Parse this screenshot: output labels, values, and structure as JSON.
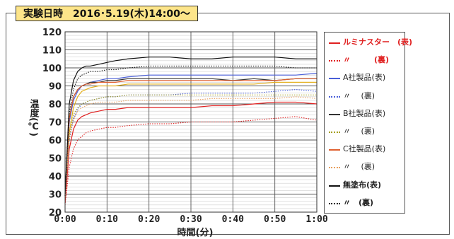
{
  "header": {
    "title": "実験日時　2016･5.19(木)14:00～"
  },
  "chart_data": {
    "type": "line",
    "xlabel": "時間(分)",
    "ylabel": "温度(℃)",
    "x_ticks": [
      "0:00",
      "0:10",
      "0:20",
      "0:30",
      "0:40",
      "0:50",
      "1:00"
    ],
    "ylim": [
      20,
      120
    ],
    "y_ticks": [
      20,
      30,
      40,
      50,
      60,
      70,
      80,
      90,
      100,
      110,
      120
    ],
    "grid": true,
    "legend_position": "right",
    "x": [
      0,
      1,
      2,
      3,
      4,
      5,
      6,
      8,
      10,
      12,
      15,
      20,
      25,
      30,
      35,
      40,
      45,
      50,
      55,
      60
    ],
    "series": [
      {
        "name": "ルミナスター(表)",
        "color": "#e02020",
        "style": "solid",
        "values": [
          25,
          55,
          66,
          71,
          73,
          74,
          75,
          76,
          77,
          77,
          78,
          78,
          78,
          78,
          79,
          79,
          80,
          81,
          81,
          80
        ]
      },
      {
        "name": "〃　(裏)",
        "color": "#e02020",
        "style": "dotted",
        "values": [
          24,
          45,
          55,
          60,
          62,
          64,
          65,
          66,
          67,
          67,
          68,
          69,
          69,
          70,
          70,
          70,
          71,
          72,
          73,
          71
        ]
      },
      {
        "name": "A社製品(表)",
        "color": "#4a5fd8",
        "style": "solid",
        "values": [
          29,
          70,
          82,
          87,
          90,
          91,
          92,
          93,
          94,
          94,
          95,
          96,
          96,
          96,
          96,
          96,
          96,
          96,
          96,
          97
        ]
      },
      {
        "name": "〃　(裏)",
        "color": "#4a5fd8",
        "style": "dotted",
        "values": [
          28,
          60,
          72,
          77,
          80,
          81,
          82,
          83,
          84,
          84,
          85,
          85,
          85,
          86,
          86,
          86,
          86,
          87,
          88,
          87
        ]
      },
      {
        "name": "B社製品(表)",
        "color": "#333333",
        "style": "solid",
        "values": [
          29,
          72,
          84,
          88,
          90,
          91,
          92,
          92,
          93,
          93,
          94,
          94,
          94,
          94,
          94,
          93,
          94,
          93,
          94,
          94
        ]
      },
      {
        "name": "〃　(裏)",
        "color": "#a6a020",
        "style": "dotted",
        "values": [
          27,
          62,
          74,
          78,
          80,
          81,
          82,
          83,
          84,
          84,
          85,
          85,
          85,
          85,
          85,
          85,
          85,
          85,
          85,
          85
        ]
      },
      {
        "name": "C社製品(表)",
        "color": "#e06030",
        "style": "solid",
        "values": [
          29,
          72,
          84,
          88,
          90,
          91,
          91,
          92,
          92,
          92,
          93,
          93,
          93,
          93,
          93,
          93,
          93,
          93,
          94,
          94
        ]
      },
      {
        "name": "〃　(裏)",
        "color": "#e8a060",
        "style": "dotted",
        "values": [
          27,
          60,
          71,
          76,
          78,
          79,
          80,
          81,
          81,
          81,
          82,
          82,
          82,
          82,
          83,
          83,
          83,
          83,
          84,
          83
        ]
      },
      {
        "name": "無塗布(表)",
        "color": "#111111",
        "style": "solid",
        "values": [
          30,
          80,
          93,
          98,
          100,
          101,
          101,
          102,
          103,
          104,
          105,
          106,
          106,
          105,
          105,
          106,
          106,
          106,
          105,
          105
        ]
      },
      {
        "name": "〃　(裏)",
        "color": "#111111",
        "style": "dotted",
        "values": [
          29,
          75,
          88,
          94,
          96,
          97,
          98,
          98,
          99,
          99,
          100,
          101,
          101,
          101,
          101,
          101,
          101,
          101,
          100,
          100
        ]
      }
    ],
    "line2": {
      "color": "#e4b020",
      "values": [
        28,
        64,
        78,
        84,
        87,
        88,
        89,
        90,
        90,
        90,
        91,
        91,
        91,
        91,
        91,
        91,
        91,
        92,
        92,
        92
      ]
    }
  },
  "legend": {
    "items": [
      {
        "label": "ルミナスター　(表)",
        "color": "#e02020",
        "style": "solid",
        "bold": true
      },
      {
        "label": "〃　　　(裏)",
        "color": "#e02020",
        "style": "dotted",
        "bold": true
      },
      {
        "label": "A社製品(表)",
        "color": "#4a5fd8",
        "style": "solid",
        "bold": false
      },
      {
        "label": "〃　 (裏)",
        "color": "#4a5fd8",
        "style": "dotted",
        "bold": false
      },
      {
        "label": "B社製品(表)",
        "color": "#333333",
        "style": "solid",
        "bold": false
      },
      {
        "label": "〃　 (裏)",
        "color": "#a6a020",
        "style": "dotted",
        "bold": false
      },
      {
        "label": "C社製品(表)",
        "color": "#e06030",
        "style": "solid",
        "bold": false
      },
      {
        "label": "〃　 (裏)",
        "color": "#e8a060",
        "style": "dotted",
        "bold": false
      },
      {
        "label": "無塗布(表)",
        "color": "#111111",
        "style": "solid",
        "bold": true
      },
      {
        "label": "〃　(裏)",
        "color": "#111111",
        "style": "dotted",
        "bold": true
      }
    ]
  }
}
